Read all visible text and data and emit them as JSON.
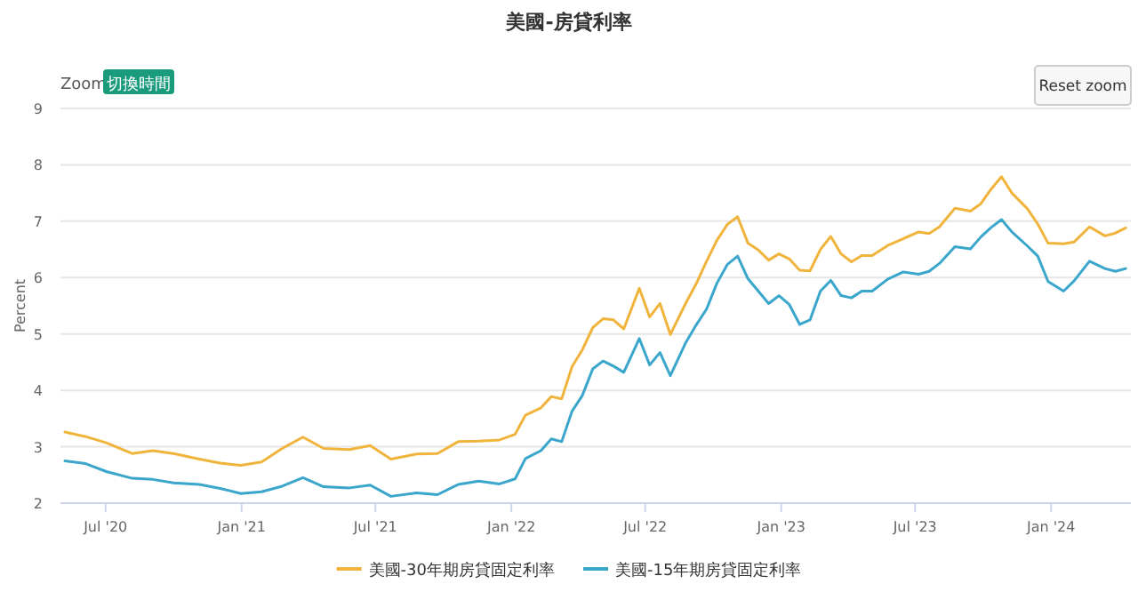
{
  "chart_data": {
    "type": "line",
    "title": "美國-房貸利率",
    "ylabel": "Percent",
    "annotations": [
      "Zoom",
      "切換時間",
      "Reset zoom"
    ],
    "x": [
      "2020-05-07",
      "2020-06-04",
      "2020-07-02",
      "2020-08-06",
      "2020-09-03",
      "2020-10-01",
      "2020-11-05",
      "2020-12-03",
      "2020-12-31",
      "2021-01-28",
      "2021-02-25",
      "2021-03-25",
      "2021-04-22",
      "2021-05-27",
      "2021-06-24",
      "2021-07-22",
      "2021-08-26",
      "2021-09-23",
      "2021-10-21",
      "2021-11-18",
      "2021-12-16",
      "2022-01-06",
      "2022-01-20",
      "2022-02-10",
      "2022-02-24",
      "2022-03-10",
      "2022-03-24",
      "2022-04-07",
      "2022-04-21",
      "2022-05-05",
      "2022-05-19",
      "2022-06-02",
      "2022-06-23",
      "2022-07-07",
      "2022-07-21",
      "2022-08-04",
      "2022-08-25",
      "2022-09-08",
      "2022-09-22",
      "2022-10-06",
      "2022-10-20",
      "2022-11-03",
      "2022-11-17",
      "2022-12-01",
      "2022-12-15",
      "2022-12-29",
      "2023-01-12",
      "2023-01-26",
      "2023-02-09",
      "2023-02-23",
      "2023-03-09",
      "2023-03-23",
      "2023-04-06",
      "2023-04-20",
      "2023-05-04",
      "2023-05-25",
      "2023-06-15",
      "2023-07-06",
      "2023-07-20",
      "2023-08-03",
      "2023-08-24",
      "2023-09-14",
      "2023-09-28",
      "2023-10-12",
      "2023-10-26",
      "2023-11-09",
      "2023-11-30",
      "2023-12-14",
      "2023-12-28",
      "2024-01-18",
      "2024-02-01",
      "2024-02-22",
      "2024-03-14",
      "2024-03-28",
      "2024-04-11"
    ],
    "series": [
      {
        "name": "美國-30年期房貸固定利率",
        "color": "#f0b43c",
        "values": [
          3.26,
          3.18,
          3.07,
          2.88,
          2.93,
          2.88,
          2.78,
          2.71,
          2.67,
          2.73,
          2.97,
          3.17,
          2.97,
          2.95,
          3.02,
          2.78,
          2.87,
          2.88,
          3.09,
          3.1,
          3.12,
          3.22,
          3.56,
          3.69,
          3.89,
          3.85,
          4.42,
          4.72,
          5.11,
          5.27,
          5.25,
          5.09,
          5.81,
          5.3,
          5.54,
          4.99,
          5.55,
          5.89,
          6.29,
          6.66,
          6.94,
          7.08,
          6.61,
          6.49,
          6.31,
          6.42,
          6.33,
          6.13,
          6.12,
          6.5,
          6.73,
          6.42,
          6.28,
          6.39,
          6.39,
          6.57,
          6.69,
          6.81,
          6.78,
          6.9,
          7.23,
          7.18,
          7.31,
          7.57,
          7.79,
          7.5,
          7.22,
          6.95,
          6.61,
          6.6,
          6.63,
          6.9,
          6.74,
          6.79,
          6.88
        ]
      },
      {
        "name": "美國-15年期房貸固定利率",
        "color": "#3aa6cc",
        "values": [
          2.75,
          2.7,
          2.56,
          2.44,
          2.42,
          2.36,
          2.33,
          2.26,
          2.17,
          2.2,
          2.3,
          2.45,
          2.29,
          2.27,
          2.32,
          2.12,
          2.18,
          2.15,
          2.33,
          2.39,
          2.34,
          2.43,
          2.79,
          2.93,
          3.14,
          3.09,
          3.63,
          3.91,
          4.38,
          4.52,
          4.43,
          4.32,
          4.92,
          4.45,
          4.67,
          4.26,
          4.85,
          5.16,
          5.44,
          5.9,
          6.23,
          6.38,
          5.98,
          5.76,
          5.54,
          5.68,
          5.52,
          5.17,
          5.25,
          5.76,
          5.95,
          5.68,
          5.64,
          5.76,
          5.76,
          5.97,
          6.1,
          6.06,
          6.11,
          6.25,
          6.55,
          6.51,
          6.72,
          6.89,
          7.03,
          6.81,
          6.56,
          6.38,
          5.93,
          5.76,
          5.94,
          6.29,
          6.16,
          6.11,
          6.16
        ]
      }
    ],
    "xlim": [
      "2020-05-01",
      "2024-04-18"
    ],
    "xticks": [
      {
        "value": "2020-07-01",
        "label": "Jul '20"
      },
      {
        "value": "2021-01-01",
        "label": "Jan '21"
      },
      {
        "value": "2021-07-01",
        "label": "Jul '21"
      },
      {
        "value": "2022-01-01",
        "label": "Jan '22"
      },
      {
        "value": "2022-07-01",
        "label": "Jul '22"
      },
      {
        "value": "2023-01-01",
        "label": "Jan '23"
      },
      {
        "value": "2023-07-01",
        "label": "Jul '23"
      },
      {
        "value": "2024-01-01",
        "label": "Jan '24"
      }
    ],
    "ylim": [
      2,
      9
    ],
    "yticks": [
      2,
      3,
      4,
      5,
      6,
      7,
      8,
      9
    ],
    "grid": "y",
    "legend": "bottom"
  }
}
